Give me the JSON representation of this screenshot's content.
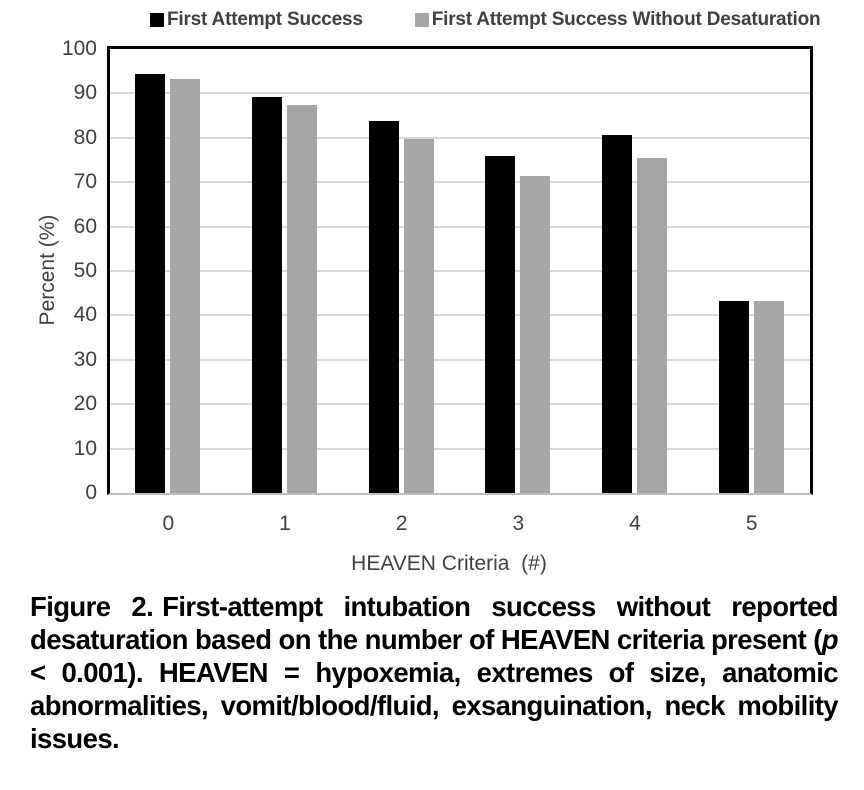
{
  "chart_data": {
    "type": "bar",
    "categories": [
      "0",
      "1",
      "2",
      "3",
      "4",
      "5"
    ],
    "series": [
      {
        "name": "First Attempt Success",
        "color": "#000000",
        "values": [
          94.3,
          89.3,
          83.7,
          75.9,
          80.6,
          43.2
        ]
      },
      {
        "name": "First Attempt Success Without Desaturation",
        "color": "#a6a6a6",
        "values": [
          93.2,
          87.3,
          79.7,
          71.3,
          75.4,
          43.2
        ]
      }
    ],
    "xlabel": "HEAVEN Criteria  (#)",
    "ylabel": "Percent (%)",
    "ylim": [
      0,
      100
    ],
    "yticks": [
      0,
      10,
      20,
      30,
      40,
      50,
      60,
      70,
      80,
      90,
      100
    ],
    "grid": true,
    "gridline_color": "#d9d9d9",
    "axis_text_color": "#404040",
    "legend_position": "top"
  },
  "caption": {
    "label": "Figure 2.",
    "part1": "First-attempt intubation success without reported desaturation based on the number of HEAVEN criteria present (",
    "p_var": "p",
    "part2": " < 0.001). HEAVEN = hypoxemia, extremes of size, anatomic abnormalities, vomit/blood/fluid, exsanguination, neck mobility issues."
  }
}
